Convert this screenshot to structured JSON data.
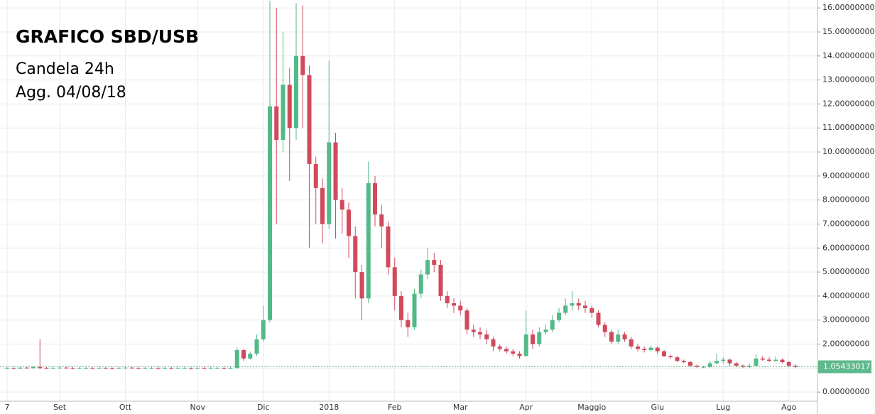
{
  "chart_data": {
    "type": "candlestick",
    "title": "GRAFICO SBD/USB",
    "annotations": [
      "Candela 24h",
      "Agg. 04/08/18"
    ],
    "categories": [
      "7",
      null,
      null,
      null,
      null,
      null,
      null,
      null,
      "Set",
      null,
      null,
      null,
      null,
      null,
      null,
      null,
      null,
      null,
      "Ott",
      null,
      null,
      null,
      null,
      null,
      null,
      null,
      null,
      null,
      null,
      "Nov",
      null,
      null,
      null,
      null,
      null,
      null,
      null,
      null,
      null,
      "Dic",
      null,
      null,
      null,
      null,
      null,
      null,
      null,
      null,
      null,
      "2018",
      null,
      null,
      null,
      null,
      null,
      null,
      null,
      null,
      null,
      "Feb",
      null,
      null,
      null,
      null,
      null,
      null,
      null,
      null,
      null,
      "Mar",
      null,
      null,
      null,
      null,
      null,
      null,
      null,
      null,
      null,
      "Apr",
      null,
      null,
      null,
      null,
      null,
      null,
      null,
      null,
      null,
      "Maggio",
      null,
      null,
      null,
      null,
      null,
      null,
      null,
      null,
      null,
      "Giu",
      null,
      null,
      null,
      null,
      null,
      null,
      null,
      null,
      null,
      "Lug",
      null,
      null,
      null,
      null,
      null,
      null,
      null,
      null,
      null,
      "Ago",
      null
    ],
    "open": [
      1.0,
      1.0,
      0.98,
      1.02,
      1.0,
      1.05,
      1.0,
      0.99,
      1.0,
      1.02,
      1.01,
      0.98,
      1.0,
      1.0,
      0.99,
      1.01,
      1.0,
      0.98,
      1.0,
      1.02,
      1.0,
      0.99,
      1.0,
      1.01,
      0.98,
      1.0,
      0.99,
      1.0,
      1.0,
      0.98,
      1.0,
      0.99,
      1.0,
      1.0,
      0.98,
      1.0,
      1.75,
      1.4,
      1.6,
      2.2,
      3.0,
      11.9,
      10.5,
      12.8,
      11.0,
      14.0,
      13.2,
      9.5,
      8.5,
      7.0,
      10.4,
      8.0,
      7.6,
      6.5,
      5.0,
      3.9,
      8.7,
      7.4,
      6.9,
      5.2,
      4.0,
      3.0,
      2.7,
      4.1,
      4.9,
      5.5,
      5.3,
      4.0,
      3.7,
      3.6,
      3.4,
      2.6,
      2.5,
      2.4,
      2.2,
      1.9,
      1.8,
      1.7,
      1.6,
      1.5,
      2.4,
      2.0,
      2.5,
      2.6,
      3.0,
      3.3,
      3.6,
      3.7,
      3.6,
      3.5,
      3.3,
      2.8,
      2.5,
      2.1,
      2.4,
      2.2,
      1.9,
      1.8,
      1.75,
      1.85,
      1.7,
      1.5,
      1.45,
      1.3,
      1.25,
      1.1,
      1.05,
      1.05,
      1.2,
      1.3,
      1.35,
      1.2,
      1.1,
      1.05,
      1.1,
      1.4,
      1.35,
      1.3,
      1.35,
      1.25,
      1.1
    ],
    "high": [
      1.05,
      1.03,
      1.08,
      1.06,
      1.1,
      2.2,
      1.04,
      1.05,
      1.07,
      1.06,
      1.05,
      1.04,
      1.05,
      1.04,
      1.06,
      1.05,
      1.03,
      1.04,
      1.07,
      1.06,
      1.04,
      1.05,
      1.06,
      1.05,
      1.04,
      1.04,
      1.05,
      1.06,
      1.03,
      1.04,
      1.04,
      1.05,
      1.05,
      1.03,
      1.04,
      1.85,
      1.8,
      1.7,
      2.4,
      3.6,
      16.3,
      16.0,
      15.0,
      13.5,
      16.2,
      16.1,
      13.6,
      9.8,
      8.9,
      13.8,
      10.8,
      8.5,
      7.9,
      6.9,
      5.3,
      9.6,
      9.0,
      7.8,
      7.1,
      5.6,
      4.2,
      3.3,
      4.3,
      5.1,
      6.0,
      5.8,
      5.5,
      4.2,
      3.9,
      3.8,
      3.5,
      2.8,
      2.7,
      2.6,
      2.3,
      2.0,
      1.9,
      1.8,
      1.7,
      3.4,
      2.6,
      2.7,
      2.8,
      3.2,
      3.5,
      3.9,
      4.2,
      3.9,
      3.8,
      3.6,
      3.4,
      2.9,
      2.6,
      2.6,
      2.5,
      2.3,
      2.0,
      1.9,
      1.95,
      1.9,
      1.75,
      1.55,
      1.5,
      1.35,
      1.3,
      1.15,
      1.1,
      1.3,
      1.6,
      1.45,
      1.4,
      1.25,
      1.15,
      1.2,
      1.6,
      1.5,
      1.45,
      1.5,
      1.4,
      1.3,
      1.15
    ],
    "low": [
      0.95,
      0.94,
      0.96,
      0.97,
      0.97,
      0.95,
      0.95,
      0.96,
      0.97,
      0.97,
      0.94,
      0.95,
      0.96,
      0.95,
      0.96,
      0.96,
      0.94,
      0.95,
      0.97,
      0.96,
      0.95,
      0.95,
      0.96,
      0.94,
      0.95,
      0.95,
      0.96,
      0.96,
      0.94,
      0.95,
      0.95,
      0.96,
      0.96,
      0.94,
      0.95,
      0.98,
      1.3,
      1.35,
      1.5,
      2.1,
      2.9,
      7.0,
      10.0,
      8.8,
      10.5,
      11.0,
      6.0,
      7.0,
      6.2,
      6.8,
      6.4,
      6.6,
      5.6,
      3.9,
      3.0,
      3.7,
      6.9,
      6.0,
      4.9,
      3.4,
      2.7,
      2.3,
      2.6,
      3.9,
      4.7,
      5.0,
      3.8,
      3.5,
      3.3,
      3.2,
      2.4,
      2.3,
      2.2,
      2.0,
      1.7,
      1.7,
      1.6,
      1.5,
      1.4,
      1.5,
      1.8,
      1.9,
      2.4,
      2.5,
      2.9,
      3.2,
      3.4,
      3.4,
      3.3,
      3.1,
      2.7,
      2.3,
      2.0,
      2.0,
      2.1,
      1.8,
      1.7,
      1.65,
      1.7,
      1.6,
      1.45,
      1.4,
      1.25,
      1.2,
      1.05,
      1.0,
      1.0,
      1.0,
      1.15,
      1.2,
      1.1,
      1.05,
      1.0,
      1.0,
      1.05,
      1.3,
      1.25,
      1.25,
      1.2,
      1.05,
      1.0
    ],
    "close": [
      1.0,
      0.98,
      1.02,
      1.0,
      1.05,
      1.0,
      0.99,
      1.0,
      1.02,
      1.01,
      0.98,
      1.0,
      1.0,
      0.99,
      1.01,
      1.0,
      0.98,
      1.0,
      1.02,
      1.0,
      0.99,
      1.0,
      1.01,
      0.98,
      1.0,
      0.99,
      1.0,
      1.0,
      0.98,
      1.0,
      0.99,
      1.0,
      1.0,
      0.98,
      1.0,
      1.75,
      1.4,
      1.6,
      2.2,
      3.0,
      11.9,
      10.5,
      12.8,
      11.0,
      14.0,
      13.2,
      9.5,
      8.5,
      7.0,
      10.4,
      8.0,
      7.6,
      6.5,
      5.0,
      3.9,
      8.7,
      7.4,
      6.9,
      5.2,
      4.0,
      3.0,
      2.7,
      4.1,
      4.9,
      5.5,
      5.3,
      4.0,
      3.7,
      3.6,
      3.4,
      2.6,
      2.5,
      2.4,
      2.2,
      1.9,
      1.8,
      1.7,
      1.6,
      1.5,
      2.4,
      2.0,
      2.5,
      2.6,
      3.0,
      3.3,
      3.6,
      3.7,
      3.6,
      3.5,
      3.3,
      2.8,
      2.5,
      2.1,
      2.4,
      2.2,
      1.9,
      1.8,
      1.75,
      1.85,
      1.7,
      1.5,
      1.45,
      1.3,
      1.25,
      1.1,
      1.05,
      1.05,
      1.2,
      1.3,
      1.35,
      1.2,
      1.1,
      1.05,
      1.1,
      1.4,
      1.35,
      1.3,
      1.35,
      1.25,
      1.1,
      1.05
    ],
    "up_color": "#53b987",
    "down_color": "#d04a5c",
    "last_price": 1.05433017,
    "last_price_color": "#5fb98e",
    "ylim": [
      -0.38,
      16.33
    ],
    "yticks": [
      {
        "value": 0,
        "label": "0.00000000"
      },
      {
        "value": 1,
        "label": "1.00000000"
      },
      {
        "value": 2,
        "label": "2.00000000"
      },
      {
        "value": 3,
        "label": "3.00000000"
      },
      {
        "value": 4,
        "label": "4.00000000"
      },
      {
        "value": 5,
        "label": "5.00000000"
      },
      {
        "value": 6,
        "label": "6.00000000"
      },
      {
        "value": 7,
        "label": "7.00000000"
      },
      {
        "value": 8,
        "label": "8.00000000"
      },
      {
        "value": 9,
        "label": "9.00000000"
      },
      {
        "value": 10,
        "label": "10.00000000"
      },
      {
        "value": 11,
        "label": "11.00000000"
      },
      {
        "value": 12,
        "label": "12.00000000"
      },
      {
        "value": 13,
        "label": "13.00000000"
      },
      {
        "value": 14,
        "label": "14.00000000"
      },
      {
        "value": 15,
        "label": "15.00000000"
      },
      {
        "value": 16,
        "label": "16.00000000"
      }
    ],
    "grid": true
  }
}
